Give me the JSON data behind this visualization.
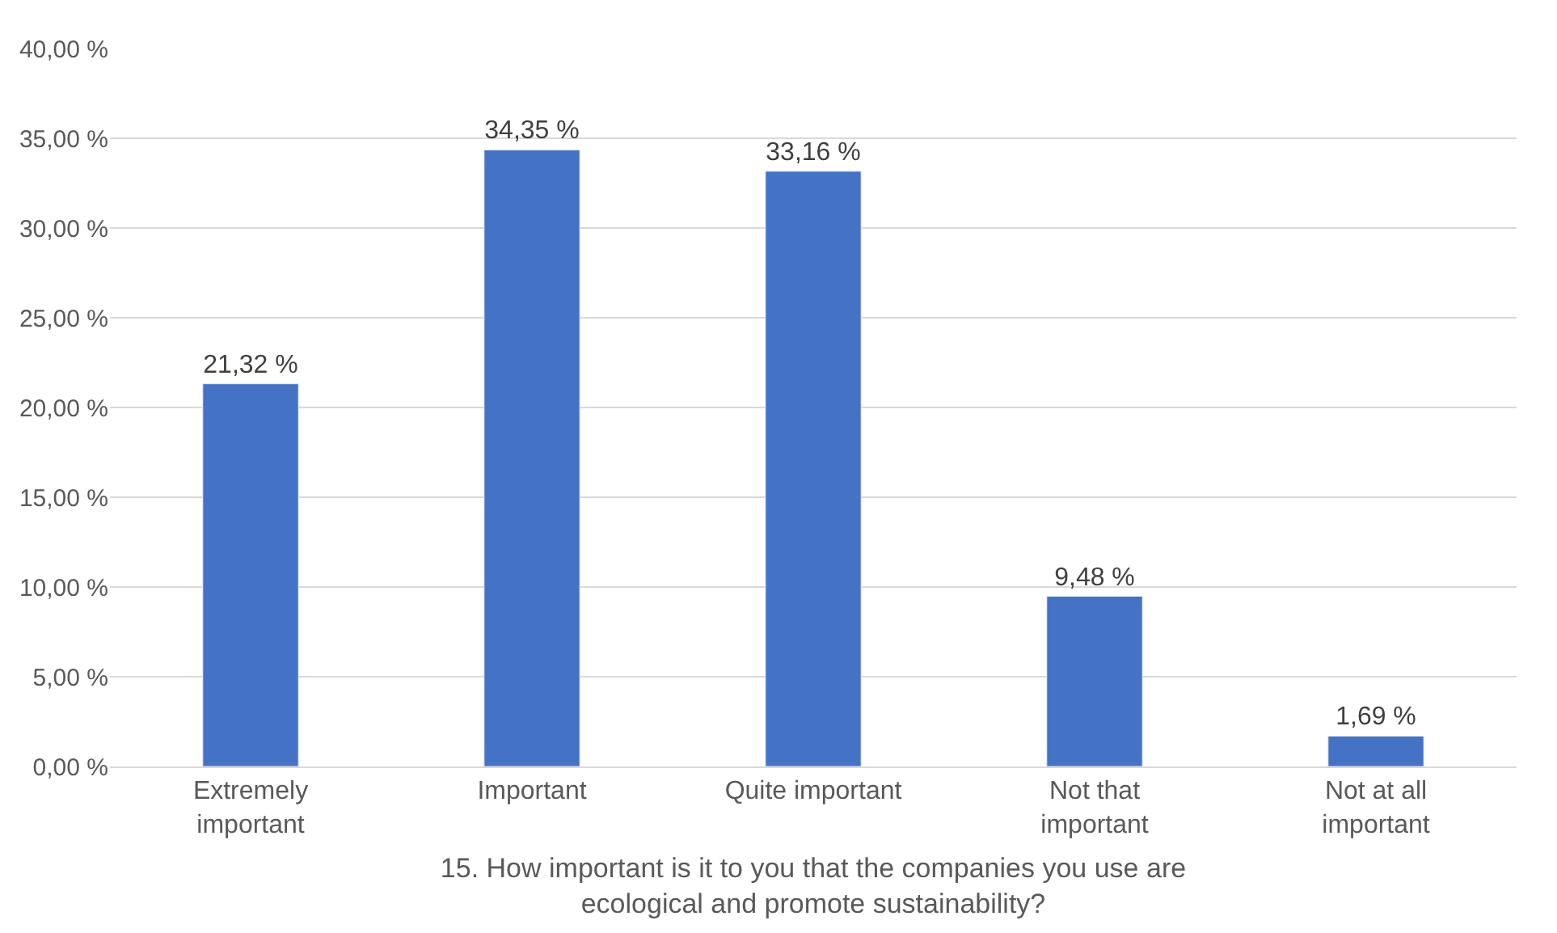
{
  "chart_data": {
    "type": "bar",
    "xlabel": "15. How important is it to you that the companies you use are ecological and promote sustainability?",
    "categories": [
      "Extremely important",
      "Important",
      "Quite important",
      "Not that important",
      "Not at all important"
    ],
    "values": [
      21.32,
      34.35,
      33.16,
      9.48,
      1.69
    ],
    "value_labels": [
      "21,32 %",
      "34,35 %",
      "33,16 %",
      "9,48 %",
      "1,69 %"
    ],
    "color": "#4472c4",
    "ylim": [
      0,
      40
    ],
    "yticks": [
      {
        "value": 0,
        "label": "0,00 %"
      },
      {
        "value": 5,
        "label": "5,00 %"
      },
      {
        "value": 10,
        "label": "10,00 %"
      },
      {
        "value": 15,
        "label": "15,00 %"
      },
      {
        "value": 20,
        "label": "20,00 %"
      },
      {
        "value": 25,
        "label": "25,00 %"
      },
      {
        "value": 30,
        "label": "30,00 %"
      },
      {
        "value": 35,
        "label": "35,00 %"
      },
      {
        "value": 40,
        "label": "40,00 %"
      }
    ],
    "grid": "y",
    "legend": false
  }
}
